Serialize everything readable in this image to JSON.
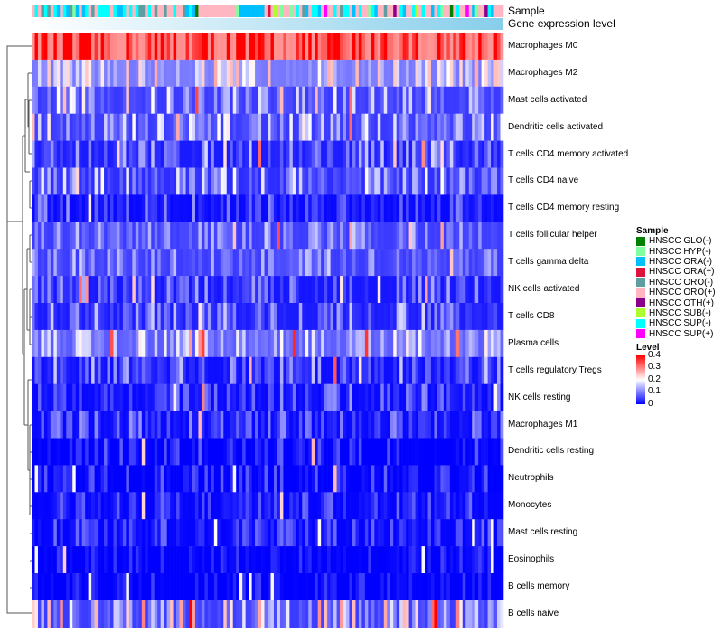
{
  "annotations": {
    "sample_label": "Sample",
    "gene_label": "Gene expression level",
    "gene_colors": [
      "#ffffff",
      "#87ceeb"
    ]
  },
  "legend": {
    "sample_title": "Sample",
    "samples": [
      {
        "label": "HNSCC GLO(-)",
        "color": "#008000",
        "code": "G"
      },
      {
        "label": "HNSCC HYP(-)",
        "color": "#7fffa0",
        "code": "H"
      },
      {
        "label": "HNSCC ORA(-)",
        "color": "#00bfff",
        "code": "A"
      },
      {
        "label": "HNSCC ORA(+)",
        "color": "#dc143c",
        "code": "R"
      },
      {
        "label": "HNSCC ORO(-)",
        "color": "#5f9ea0",
        "code": "O"
      },
      {
        "label": "HNSCC ORO(+)",
        "color": "#ffb6c1",
        "code": "P"
      },
      {
        "label": "HNSCC OTH(+)",
        "color": "#8b008b",
        "code": "T"
      },
      {
        "label": "HNSCC SUB(-)",
        "color": "#adff2f",
        "code": "B"
      },
      {
        "label": "HNSCC SUP(-)",
        "color": "#00ffff",
        "code": "S"
      },
      {
        "label": "HNSCC SUP(+)",
        "color": "#ff00ff",
        "code": "U"
      }
    ],
    "level_title": "Level",
    "level_ticks": [
      "0.4",
      "0.3",
      "0.2",
      "0.1",
      "0"
    ]
  },
  "chart_data": {
    "type": "heatmap",
    "title": "",
    "color_scale": {
      "min": 0,
      "mid": 0.2,
      "max": 0.4,
      "colors": [
        "#0000ff",
        "#ffffff",
        "#ff0000"
      ]
    },
    "n_columns": 150,
    "sample_sequence": "PSPOSOPSAPSAOHAPASPOPSSSSPSAASPSPSOOPSPOPPOPPSPPOASAGPPPPPPPPPPPPHAAAAAAAAPRPBPHPPHPSPOAPSSAPUPPSPOSSPAPSPPHSAPPOPPTPSAPPSBPSPPAPSHPPGPSPPUPAHPPTSA",
    "rows": [
      {
        "label": "Macrophages M0",
        "mean": 0.33,
        "spread": 0.08
      },
      {
        "label": "Macrophages M2",
        "mean": 0.13,
        "spread": 0.06
      },
      {
        "label": "Mast cells activated",
        "mean": 0.08,
        "spread": 0.06
      },
      {
        "label": "Dendritic cells activated",
        "mean": 0.08,
        "spread": 0.06
      },
      {
        "label": "T cells CD4 memory activated",
        "mean": 0.05,
        "spread": 0.05
      },
      {
        "label": "T cells CD4 naive",
        "mean": 0.07,
        "spread": 0.06
      },
      {
        "label": "T cells CD4 memory resting",
        "mean": 0.03,
        "spread": 0.04
      },
      {
        "label": "T cells follicular helper",
        "mean": 0.07,
        "spread": 0.04
      },
      {
        "label": "T cells gamma delta",
        "mean": 0.07,
        "spread": 0.04
      },
      {
        "label": "NK cells activated",
        "mean": 0.04,
        "spread": 0.04
      },
      {
        "label": "T cells CD8",
        "mean": 0.05,
        "spread": 0.05
      },
      {
        "label": "Plasma cells",
        "mean": 0.1,
        "spread": 0.05
      },
      {
        "label": "T cells regulatory  Tregs",
        "mean": 0.04,
        "spread": 0.05
      },
      {
        "label": "NK cells resting",
        "mean": 0.03,
        "spread": 0.04
      },
      {
        "label": "Macrophages M1",
        "mean": 0.03,
        "spread": 0.04
      },
      {
        "label": "Dendritic cells resting",
        "mean": 0.01,
        "spread": 0.03
      },
      {
        "label": "Neutrophils",
        "mean": 0.01,
        "spread": 0.03
      },
      {
        "label": "Monocytes",
        "mean": 0.02,
        "spread": 0.03
      },
      {
        "label": "Mast cells resting",
        "mean": 0.02,
        "spread": 0.03
      },
      {
        "label": "Eosinophils",
        "mean": 0.005,
        "spread": 0.02
      },
      {
        "label": "B cells memory",
        "mean": 0.005,
        "spread": 0.02
      },
      {
        "label": "B cells naive",
        "mean": 0.1,
        "spread": 0.09
      }
    ]
  }
}
